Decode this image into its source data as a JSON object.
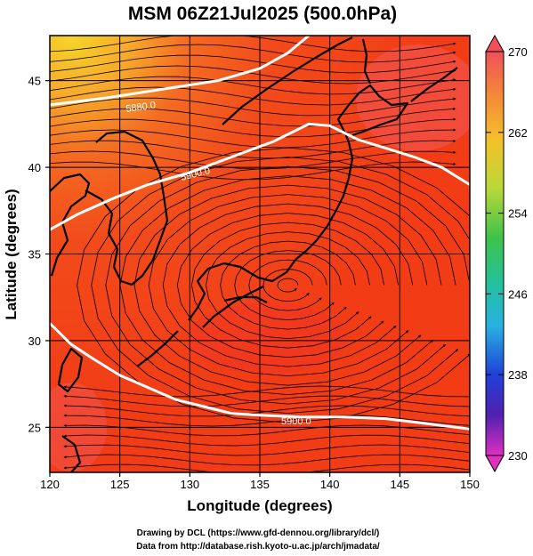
{
  "title": "MSM 06Z21Jul2025 (500.0hPa)",
  "xlabel": "Longitude (degrees)",
  "ylabel": "Latitude  (degrees)",
  "x_ticks": [
    "120",
    "125",
    "130",
    "135",
    "140",
    "145",
    "150"
  ],
  "y_ticks": [
    "25",
    "30",
    "35",
    "40",
    "45"
  ],
  "colorbar_ticks": [
    "270",
    "262",
    "254",
    "246",
    "238",
    "230"
  ],
  "contour_labels": [
    "5880.0",
    "5900.0",
    "5900.0"
  ],
  "credits": {
    "line1": "Drawing by DCL (https://www.gfd-dennou.org/library/dcl/)",
    "line2": "Data from http://database.rish.kyoto-u.ac.jp/arch/jmadata/"
  },
  "colors": {
    "field_main": "#f24a1a",
    "field_cool": "#f7b02a",
    "contour": "#ffffff",
    "coast": "#000000"
  },
  "chart_data": {
    "type": "map",
    "xlim": [
      120,
      150
    ],
    "ylim": [
      22.4,
      47.6
    ],
    "colorbar_range": [
      230,
      270
    ],
    "height_contours": [
      {
        "level": 5880.0,
        "points": [
          [
            120,
            43.6
          ],
          [
            124,
            44.0
          ],
          [
            128,
            44.5
          ],
          [
            132,
            45.0
          ],
          [
            135,
            45.7
          ],
          [
            137,
            46.6
          ],
          [
            138.5,
            47.6
          ]
        ]
      },
      {
        "level": 5900.0,
        "points": [
          [
            120,
            36.4
          ],
          [
            122,
            37.3
          ],
          [
            124.5,
            38.2
          ],
          [
            127,
            39.0
          ],
          [
            130,
            39.7
          ],
          [
            133,
            40.6
          ],
          [
            136,
            41.5
          ],
          [
            138.5,
            42.5
          ],
          [
            140,
            42.4
          ],
          [
            142,
            41.6
          ],
          [
            144,
            41.1
          ],
          [
            146,
            40.6
          ],
          [
            148,
            40.0
          ],
          [
            150,
            39.0
          ]
        ]
      },
      {
        "level": 5900.0,
        "points": [
          [
            120,
            31.0
          ],
          [
            121.5,
            29.8
          ],
          [
            123,
            29.0
          ],
          [
            125,
            28.0
          ],
          [
            127,
            27.3
          ],
          [
            129,
            26.6
          ],
          [
            131,
            26.2
          ],
          [
            133,
            25.8
          ],
          [
            135,
            25.7
          ],
          [
            138,
            25.6
          ],
          [
            141,
            25.6
          ],
          [
            144,
            25.5
          ],
          [
            147,
            25.2
          ],
          [
            150,
            24.9
          ]
        ]
      }
    ]
  }
}
